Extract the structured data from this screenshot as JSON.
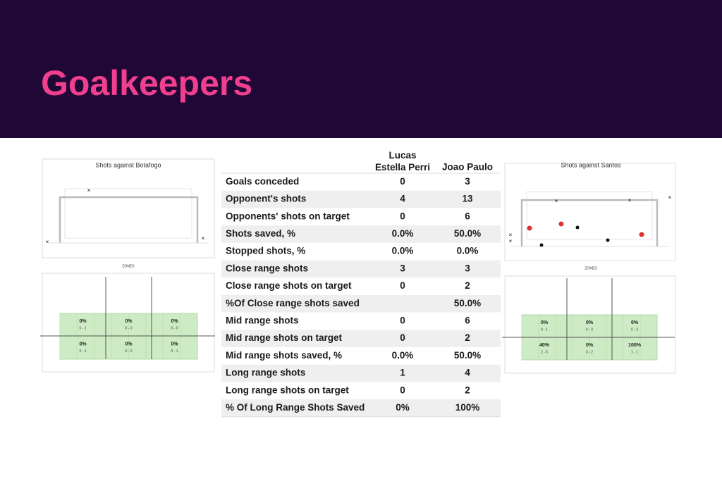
{
  "header": {
    "title": "Goalkeepers"
  },
  "left_panel": {
    "title": "Shots against Botafogo",
    "zones_label": "ZONES",
    "zones": [
      [
        {
          "pct": "0%",
          "count": "0 - 1"
        },
        {
          "pct": "0%",
          "count": "0 - 0"
        },
        {
          "pct": "0%",
          "count": "0 - 0"
        }
      ],
      [
        {
          "pct": "0%",
          "count": "0 - 1"
        },
        {
          "pct": "0%",
          "count": "0 - 0"
        },
        {
          "pct": "0%",
          "count": "0 - 1"
        }
      ]
    ]
  },
  "right_panel": {
    "title": "Shots against Santos",
    "zones_label": "ZONES",
    "zones": [
      [
        {
          "pct": "0%",
          "count": "0 - 1"
        },
        {
          "pct": "0%",
          "count": "0 - 0"
        },
        {
          "pct": "0%",
          "count": "0 - 2"
        }
      ],
      [
        {
          "pct": "40%",
          "count": "2 - 5"
        },
        {
          "pct": "0%",
          "count": "0 - 2"
        },
        {
          "pct": "100%",
          "count": "1 - 1"
        }
      ]
    ]
  },
  "table": {
    "columns": [
      "Lucas Estella Perri",
      "Joao Paulo"
    ],
    "rows": [
      [
        "Goals conceded",
        "0",
        "3"
      ],
      [
        "Opponent's shots",
        "4",
        "13"
      ],
      [
        "Opponents' shots  on target",
        "0",
        "6"
      ],
      [
        "Shots saved, %",
        "0.0%",
        "50.0%"
      ],
      [
        "Stopped shots, %",
        "0.0%",
        "0.0%"
      ],
      [
        "Close range shots",
        "3",
        "3"
      ],
      [
        "Close range shots on target",
        "0",
        "2"
      ],
      [
        "%Of Close range shots saved",
        null,
        "50.0%"
      ],
      [
        "Mid range shots",
        "0",
        "6"
      ],
      [
        "Mid range shots on target",
        "0",
        "2"
      ],
      [
        "Mid range shots saved, %",
        "0.0%",
        "50.0%"
      ],
      [
        "Long range shots",
        "1",
        "4"
      ],
      [
        "Long range shots on target",
        "0",
        "2"
      ],
      [
        "% Of Long Range Shots Saved",
        "0%",
        "100%"
      ]
    ]
  }
}
